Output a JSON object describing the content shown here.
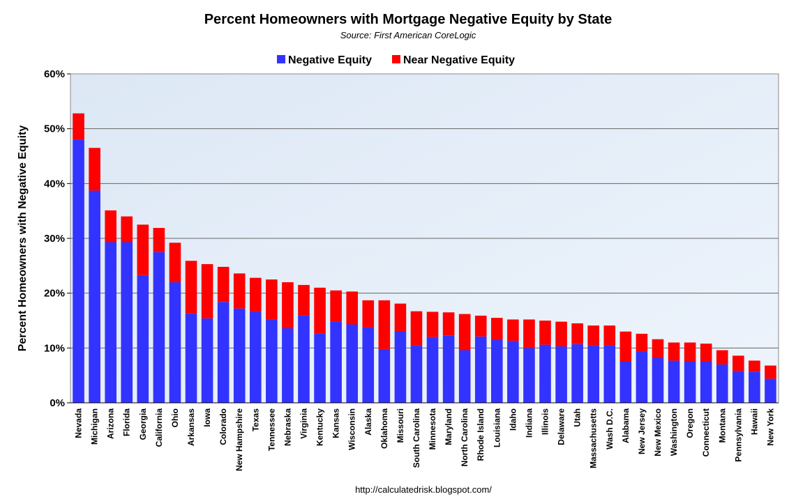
{
  "chart_data": {
    "type": "bar",
    "stacked": true,
    "title": "Percent Homeowners with Mortgage Negative Equity by State",
    "subtitle": "Source: First American CoreLogic",
    "ylabel": "Percent Homeowners with Negative Equity",
    "xlabel": "",
    "ylim": [
      0,
      60
    ],
    "yticks": [
      "0%",
      "10%",
      "20%",
      "30%",
      "40%",
      "50%",
      "60%"
    ],
    "grid": true,
    "legend_position": "top",
    "footer": "http://calculatedrisk.blogspot.com/",
    "categories": [
      "Nevada",
      "Michigan",
      "Arizona",
      "Florida",
      "Georgia",
      "California",
      "Ohio",
      "Arkansas",
      "Iowa",
      "Colorado",
      "New Hampshire",
      "Texas",
      "Tennessee",
      "Nebraska",
      "Virginia",
      "Kentucky",
      "Kansas",
      "Wisconsin",
      "Alaska",
      "Oklahoma",
      "Missouri",
      "South Carolina",
      "Minnesota",
      "Maryland",
      "North Carolina",
      "Rhode Island",
      "Louisiana",
      "Idaho",
      "Indiana",
      "Illinois",
      "Delaware",
      "Utah",
      "Massachusetts",
      "Wash D.C.",
      "Alabama",
      "New Jersey",
      "New Mexico",
      "Washington",
      "Oregon",
      "Connecticut",
      "Montana",
      "Pennsylvania",
      "Hawaii",
      "New York"
    ],
    "series": [
      {
        "name": "Negative Equity",
        "color": "#3333ff",
        "values": [
          48.0,
          38.7,
          29.3,
          29.3,
          23.3,
          27.5,
          22.0,
          16.3,
          15.4,
          18.4,
          17.2,
          16.6,
          15.2,
          13.6,
          16.0,
          12.6,
          14.8,
          14.3,
          13.8,
          9.8,
          13.1,
          10.5,
          12.0,
          12.3,
          9.6,
          12.1,
          11.5,
          11.3,
          10.0,
          10.6,
          10.3,
          10.7,
          10.5,
          10.5,
          7.5,
          9.4,
          8.2,
          7.7,
          7.5,
          7.5,
          7.0,
          5.8,
          5.7,
          4.4
        ]
      },
      {
        "name": "Near Negative Equity",
        "color": "#ff0000",
        "values": [
          4.8,
          7.8,
          5.8,
          4.7,
          9.2,
          4.4,
          7.2,
          9.6,
          9.9,
          6.4,
          6.4,
          6.2,
          7.3,
          8.4,
          5.5,
          8.4,
          5.7,
          6.0,
          4.9,
          8.9,
          5.0,
          6.2,
          4.6,
          4.2,
          6.6,
          3.8,
          4.0,
          3.9,
          5.2,
          4.4,
          4.5,
          3.8,
          3.6,
          3.6,
          5.5,
          3.2,
          3.4,
          3.3,
          3.5,
          3.3,
          2.6,
          2.8,
          2.0,
          2.4
        ]
      }
    ]
  }
}
